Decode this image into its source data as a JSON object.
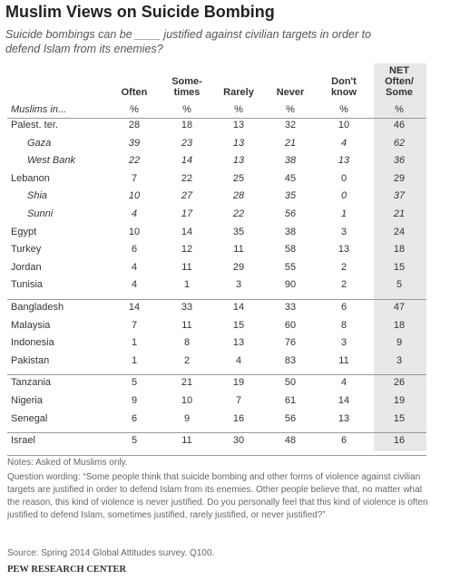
{
  "header": {
    "title": "Muslim Views on Suicide Bombing",
    "subtitle": "Suicide bombings can be ____ justified against civilian targets in order to defend Islam from its enemies?"
  },
  "table": {
    "columns": [
      [
        "Often"
      ],
      [
        "Some-",
        "times"
      ],
      [
        "Rarely"
      ],
      [
        "Never"
      ],
      [
        "Don't",
        "know"
      ],
      [
        "NET",
        "Often/",
        "Some"
      ]
    ],
    "units": {
      "label": "Muslims in...",
      "values": [
        "%",
        "%",
        "%",
        "%",
        "%",
        "%"
      ]
    },
    "groups": [
      [
        {
          "label": "Palest. ter.",
          "values": [
            28,
            18,
            13,
            32,
            10,
            46
          ]
        },
        {
          "label": "Gaza",
          "italic": true,
          "values": [
            39,
            23,
            13,
            21,
            4,
            62
          ]
        },
        {
          "label": "West Bank",
          "italic": true,
          "values": [
            22,
            14,
            13,
            38,
            13,
            36
          ]
        },
        {
          "label": "Lebanon",
          "values": [
            7,
            22,
            25,
            45,
            0,
            29
          ]
        },
        {
          "label": "Shia",
          "italic": true,
          "values": [
            10,
            27,
            28,
            35,
            0,
            37
          ]
        },
        {
          "label": "Sunni",
          "italic": true,
          "values": [
            4,
            17,
            22,
            56,
            1,
            21
          ]
        },
        {
          "label": "Egypt",
          "values": [
            10,
            14,
            35,
            38,
            3,
            24
          ]
        },
        {
          "label": "Turkey",
          "values": [
            6,
            12,
            11,
            58,
            13,
            18
          ]
        },
        {
          "label": "Jordan",
          "values": [
            4,
            11,
            29,
            55,
            2,
            15
          ]
        },
        {
          "label": "Tunisia",
          "values": [
            4,
            1,
            3,
            90,
            2,
            5
          ]
        }
      ],
      [
        {
          "label": "Bangladesh",
          "values": [
            14,
            33,
            14,
            33,
            6,
            47
          ]
        },
        {
          "label": "Malaysia",
          "values": [
            7,
            11,
            15,
            60,
            8,
            18
          ]
        },
        {
          "label": "Indonesia",
          "values": [
            1,
            8,
            13,
            76,
            3,
            9
          ]
        },
        {
          "label": "Pakistan",
          "values": [
            1,
            2,
            4,
            83,
            11,
            3
          ]
        }
      ],
      [
        {
          "label": "Tanzania",
          "values": [
            5,
            21,
            19,
            50,
            4,
            26
          ]
        },
        {
          "label": "Nigeria",
          "values": [
            9,
            10,
            7,
            61,
            14,
            19
          ]
        },
        {
          "label": "Senegal",
          "values": [
            6,
            9,
            16,
            56,
            13,
            15
          ]
        }
      ],
      [
        {
          "label": "Israel",
          "values": [
            5,
            11,
            30,
            48,
            6,
            16
          ]
        }
      ]
    ]
  },
  "footer": {
    "notes": "Notes: Asked of Muslims only.",
    "question": "Question wording: “Some people think that suicide bombing and other forms of violence against civilian targets are justified in order to defend Islam from its enemies. Other people believe that, no matter what the reason, this kind of violence is never justified. Do you personally feel that this kind of violence is often justified to defend Islam, sometimes justified, rarely justified, or never justified?”",
    "source": "Source: Spring 2014 Global Attitudes survey. Q100.",
    "org": "PEW RESEARCH CENTER"
  }
}
